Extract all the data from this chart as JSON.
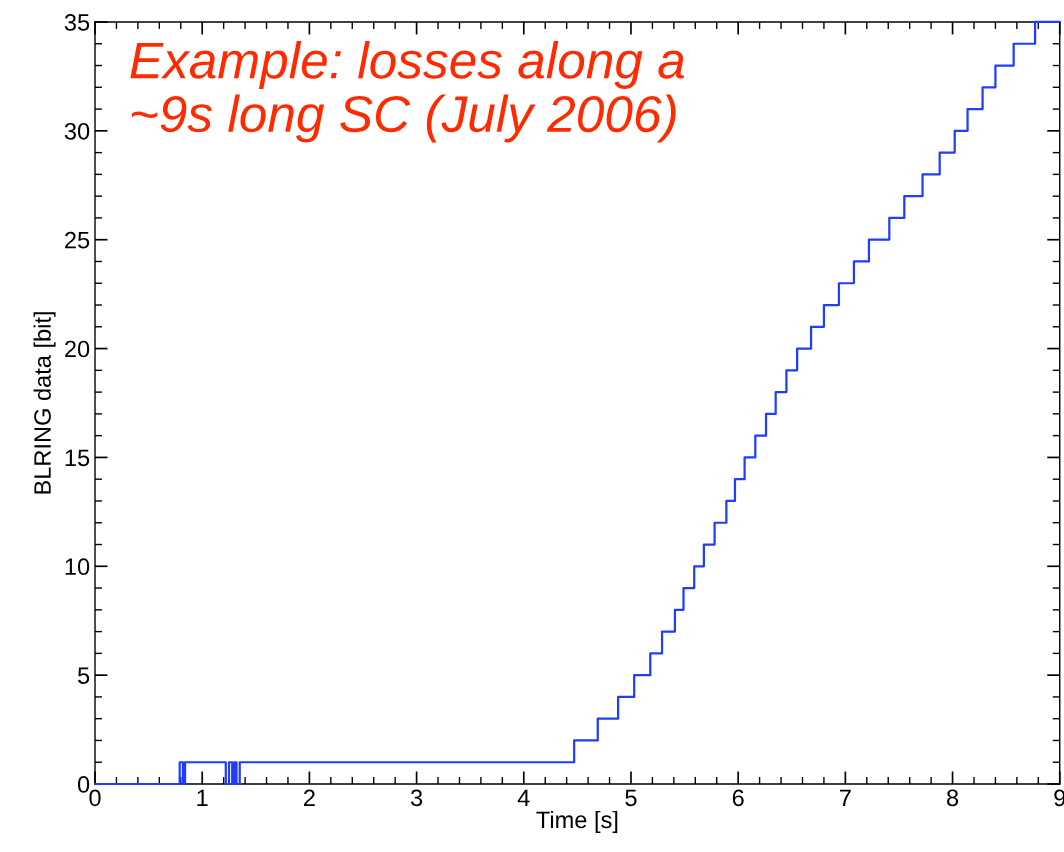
{
  "chart_data": {
    "type": "step",
    "xlabel": "Time [s]",
    "ylabel": "BLRING data [bit]",
    "annotations": [
      "Example: losses along a\n~9s long SC (July 2006)"
    ],
    "xlim": [
      0,
      9
    ],
    "ylim": [
      0,
      35
    ],
    "xticks": [
      0,
      1,
      2,
      3,
      4,
      5,
      6,
      7,
      8,
      9
    ],
    "yticks": [
      0,
      5,
      10,
      15,
      20,
      25,
      30,
      35
    ],
    "grid": false,
    "line_style": "solid",
    "series": [
      {
        "color": "#1f3cff",
        "x": [
          0,
          0.79,
          0.82,
          0.84,
          1.22,
          1.25,
          1.28,
          1.3,
          1.32,
          1.35,
          4.47,
          4.69,
          4.88,
          5.03,
          5.18,
          5.29,
          5.41,
          5.49,
          5.59,
          5.68,
          5.78,
          5.89,
          5.97,
          6.06,
          6.16,
          6.26,
          6.35,
          6.45,
          6.55,
          6.68,
          6.8,
          6.94,
          7.08,
          7.22,
          7.41,
          7.55,
          7.72,
          7.88,
          8.02,
          8.14,
          8.28,
          8.4,
          8.57,
          8.77,
          9
        ],
        "values": [
          0,
          1,
          0,
          1,
          0,
          1,
          0,
          1,
          0,
          1,
          2,
          3,
          4,
          5,
          6,
          7,
          8,
          9,
          10,
          11,
          12,
          13,
          14,
          15,
          16,
          17,
          18,
          19,
          20,
          21,
          22,
          23,
          24,
          25,
          26,
          27,
          28,
          29,
          30,
          31,
          32,
          33,
          34,
          35,
          35
        ]
      }
    ]
  }
}
